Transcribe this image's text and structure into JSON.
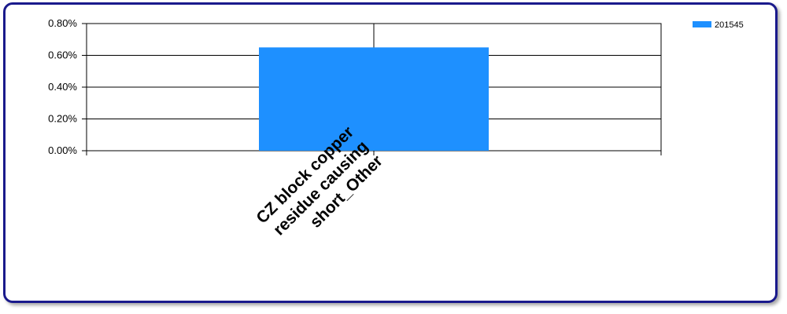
{
  "chart_data": {
    "type": "bar",
    "title": "",
    "xlabel": "",
    "ylabel": "",
    "categories": [
      "CZ block copper residue causing short_Other"
    ],
    "category_label_lines": [
      [
        "CZ block copper",
        "residue causing",
        "short_Other"
      ]
    ],
    "series": [
      {
        "name": "201545",
        "values": [
          0.0065
        ],
        "color": "#1e90ff"
      }
    ],
    "ylim": [
      0,
      0.008
    ],
    "yticks": [
      0,
      0.002,
      0.004,
      0.006,
      0.008
    ],
    "ytick_labels": [
      "0.00%",
      "0.20%",
      "0.40%",
      "0.60%",
      "0.80%"
    ],
    "grid": true,
    "legend_position": "top-right"
  }
}
